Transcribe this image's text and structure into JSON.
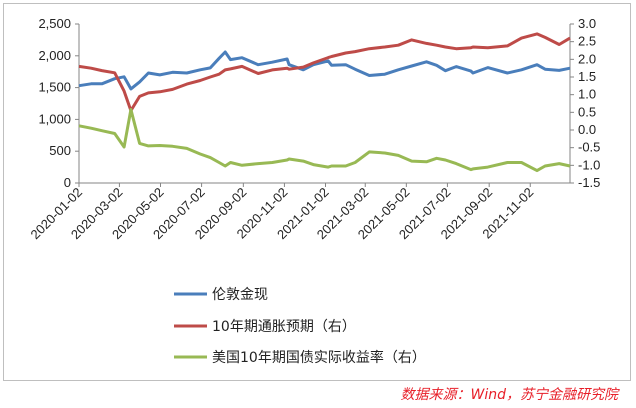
{
  "chart_data": {
    "type": "line",
    "title": "",
    "xlabel": "",
    "ylabel_left": "",
    "ylabel_right": "",
    "y_left": {
      "range": [
        0,
        2500
      ],
      "ticks": [
        "0",
        "500",
        "1,000",
        "1,500",
        "2,000",
        "2,500"
      ]
    },
    "y_right": {
      "range": [
        -1.5,
        3.0
      ],
      "ticks": [
        "-1.5",
        "-1.0",
        "-0.5",
        "0.0",
        "0.5",
        "1.0",
        "1.5",
        "2.0",
        "2.5",
        "3.0"
      ]
    },
    "x_range": [
      "2020-01-02",
      "2021-12-31"
    ],
    "x_ticks": [
      "2020-01-02",
      "2020-03-02",
      "2020-05-02",
      "2020-07-02",
      "2020-09-02",
      "2020-11-02",
      "2021-01-02",
      "2021-03-02",
      "2021-05-02",
      "2021-07-02",
      "2021-09-02",
      "2021-11-02"
    ],
    "grid": false,
    "legend_position": "bottom",
    "series": [
      {
        "name": "伦敦金现",
        "axis": "left",
        "color": "#4a7ebb",
        "points": [
          [
            "2020-01-02",
            1530
          ],
          [
            "2020-01-20",
            1560
          ],
          [
            "2020-02-05",
            1560
          ],
          [
            "2020-02-24",
            1640
          ],
          [
            "2020-03-09",
            1670
          ],
          [
            "2020-03-19",
            1480
          ],
          [
            "2020-04-01",
            1590
          ],
          [
            "2020-04-14",
            1730
          ],
          [
            "2020-05-01",
            1700
          ],
          [
            "2020-05-20",
            1740
          ],
          [
            "2020-06-10",
            1730
          ],
          [
            "2020-06-30",
            1780
          ],
          [
            "2020-07-15",
            1810
          ],
          [
            "2020-07-28",
            1960
          ],
          [
            "2020-08-06",
            2060
          ],
          [
            "2020-08-14",
            1940
          ],
          [
            "2020-08-31",
            1970
          ],
          [
            "2020-09-24",
            1860
          ],
          [
            "2020-10-15",
            1900
          ],
          [
            "2020-11-06",
            1950
          ],
          [
            "2020-11-09",
            1860
          ],
          [
            "2020-11-30",
            1780
          ],
          [
            "2020-12-15",
            1860
          ],
          [
            "2021-01-06",
            1920
          ],
          [
            "2021-01-11",
            1850
          ],
          [
            "2021-02-01",
            1860
          ],
          [
            "2021-02-15",
            1790
          ],
          [
            "2021-03-08",
            1690
          ],
          [
            "2021-03-31",
            1710
          ],
          [
            "2021-04-20",
            1780
          ],
          [
            "2021-05-10",
            1840
          ],
          [
            "2021-06-01",
            1905
          ],
          [
            "2021-06-16",
            1850
          ],
          [
            "2021-06-29",
            1765
          ],
          [
            "2021-07-15",
            1830
          ],
          [
            "2021-08-06",
            1760
          ],
          [
            "2021-08-09",
            1730
          ],
          [
            "2021-08-31",
            1815
          ],
          [
            "2021-09-29",
            1730
          ],
          [
            "2021-10-20",
            1780
          ],
          [
            "2021-11-12",
            1860
          ],
          [
            "2021-11-24",
            1790
          ],
          [
            "2021-12-15",
            1770
          ],
          [
            "2021-12-31",
            1805
          ]
        ]
      },
      {
        "name": "10年期通胀预期（右）",
        "axis": "right",
        "color": "#be4b48",
        "points": [
          [
            "2020-01-02",
            1.8
          ],
          [
            "2020-01-20",
            1.75
          ],
          [
            "2020-02-05",
            1.68
          ],
          [
            "2020-02-24",
            1.62
          ],
          [
            "2020-03-09",
            1.1
          ],
          [
            "2020-03-19",
            0.55
          ],
          [
            "2020-04-01",
            0.95
          ],
          [
            "2020-04-14",
            1.05
          ],
          [
            "2020-05-01",
            1.08
          ],
          [
            "2020-05-20",
            1.15
          ],
          [
            "2020-06-10",
            1.3
          ],
          [
            "2020-06-30",
            1.4
          ],
          [
            "2020-07-15",
            1.5
          ],
          [
            "2020-07-28",
            1.58
          ],
          [
            "2020-08-06",
            1.7
          ],
          [
            "2020-08-14",
            1.73
          ],
          [
            "2020-08-31",
            1.8
          ],
          [
            "2020-09-24",
            1.6
          ],
          [
            "2020-10-15",
            1.7
          ],
          [
            "2020-11-06",
            1.75
          ],
          [
            "2020-11-09",
            1.72
          ],
          [
            "2020-11-30",
            1.78
          ],
          [
            "2020-12-15",
            1.9
          ],
          [
            "2021-01-06",
            2.05
          ],
          [
            "2021-01-11",
            2.08
          ],
          [
            "2021-02-01",
            2.18
          ],
          [
            "2021-02-15",
            2.22
          ],
          [
            "2021-03-08",
            2.3
          ],
          [
            "2021-03-31",
            2.35
          ],
          [
            "2021-04-20",
            2.4
          ],
          [
            "2021-05-10",
            2.55
          ],
          [
            "2021-06-01",
            2.45
          ],
          [
            "2021-06-16",
            2.4
          ],
          [
            "2021-06-29",
            2.35
          ],
          [
            "2021-07-15",
            2.3
          ],
          [
            "2021-08-06",
            2.33
          ],
          [
            "2021-08-09",
            2.35
          ],
          [
            "2021-08-31",
            2.33
          ],
          [
            "2021-09-29",
            2.38
          ],
          [
            "2021-10-20",
            2.6
          ],
          [
            "2021-11-12",
            2.72
          ],
          [
            "2021-11-24",
            2.62
          ],
          [
            "2021-12-15",
            2.42
          ],
          [
            "2021-12-31",
            2.6
          ]
        ]
      },
      {
        "name": "美国10年期国债实际收益率（右）",
        "axis": "right",
        "color": "#98b954",
        "points": [
          [
            "2020-01-02",
            0.12
          ],
          [
            "2020-01-20",
            0.05
          ],
          [
            "2020-02-05",
            -0.02
          ],
          [
            "2020-02-24",
            -0.1
          ],
          [
            "2020-03-09",
            -0.48
          ],
          [
            "2020-03-19",
            0.58
          ],
          [
            "2020-04-01",
            -0.38
          ],
          [
            "2020-04-14",
            -0.45
          ],
          [
            "2020-05-01",
            -0.44
          ],
          [
            "2020-05-20",
            -0.46
          ],
          [
            "2020-06-10",
            -0.52
          ],
          [
            "2020-06-30",
            -0.68
          ],
          [
            "2020-07-15",
            -0.78
          ],
          [
            "2020-07-28",
            -0.92
          ],
          [
            "2020-08-06",
            -1.02
          ],
          [
            "2020-08-14",
            -0.92
          ],
          [
            "2020-08-31",
            -1.0
          ],
          [
            "2020-09-24",
            -0.95
          ],
          [
            "2020-10-15",
            -0.92
          ],
          [
            "2020-11-06",
            -0.85
          ],
          [
            "2020-11-09",
            -0.82
          ],
          [
            "2020-11-30",
            -0.88
          ],
          [
            "2020-12-15",
            -0.98
          ],
          [
            "2021-01-06",
            -1.05
          ],
          [
            "2021-01-11",
            -1.02
          ],
          [
            "2021-02-01",
            -1.02
          ],
          [
            "2021-02-15",
            -0.92
          ],
          [
            "2021-03-08",
            -0.62
          ],
          [
            "2021-03-31",
            -0.65
          ],
          [
            "2021-04-20",
            -0.72
          ],
          [
            "2021-05-10",
            -0.88
          ],
          [
            "2021-06-01",
            -0.9
          ],
          [
            "2021-06-16",
            -0.8
          ],
          [
            "2021-06-29",
            -0.85
          ],
          [
            "2021-07-15",
            -0.95
          ],
          [
            "2021-08-06",
            -1.12
          ],
          [
            "2021-08-09",
            -1.1
          ],
          [
            "2021-08-31",
            -1.05
          ],
          [
            "2021-09-29",
            -0.92
          ],
          [
            "2021-10-20",
            -0.92
          ],
          [
            "2021-11-12",
            -1.15
          ],
          [
            "2021-11-24",
            -1.02
          ],
          [
            "2021-12-15",
            -0.95
          ],
          [
            "2021-12-31",
            -1.02
          ]
        ]
      }
    ]
  },
  "source_note": "数据来源：Wind，苏宁金融研究院"
}
